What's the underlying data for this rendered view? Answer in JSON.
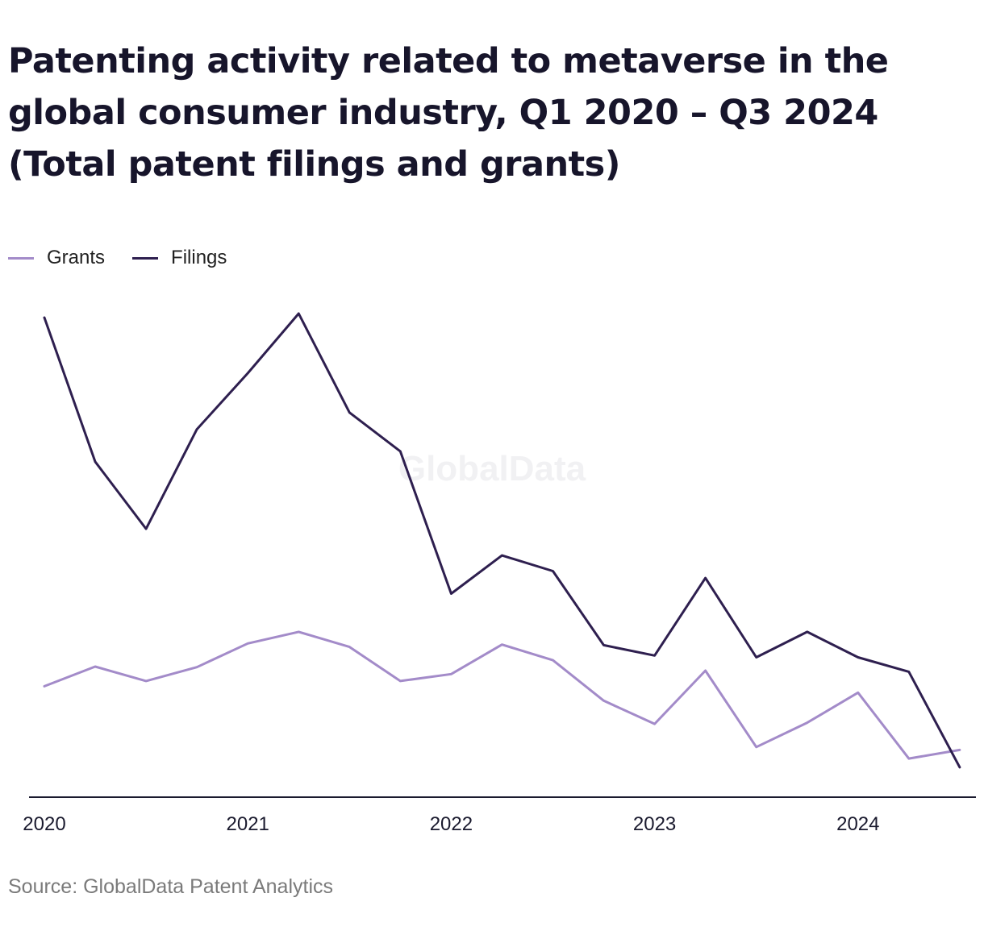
{
  "title": "Patenting activity related to metaverse in the global consumer industry, Q1 2020 – Q3 2024 (Total patent filings and grants)",
  "watermark": "GlobalData",
  "source": "Source: GlobalData Patent Analytics",
  "legend": {
    "position": "top-left"
  },
  "chart_data": {
    "type": "line",
    "title": "Patenting activity related to metaverse in the global consumer industry, Q1 2020 – Q3 2024 (Total patent filings and grants)",
    "xlabel": "",
    "ylabel": "",
    "x": [
      "Q1 2020",
      "Q2 2020",
      "Q3 2020",
      "Q4 2020",
      "Q1 2021",
      "Q2 2021",
      "Q3 2021",
      "Q4 2021",
      "Q1 2022",
      "Q2 2022",
      "Q3 2022",
      "Q4 2022",
      "Q1 2023",
      "Q2 2023",
      "Q3 2023",
      "Q4 2023",
      "Q1 2024",
      "Q2 2024",
      "Q3 2024"
    ],
    "x_tick_labels": [
      "2020",
      "2021",
      "2022",
      "2023",
      "2024"
    ],
    "y_axis_visible": false,
    "grid": false,
    "ylim": [
      0,
      100
    ],
    "series": [
      {
        "name": "Grants",
        "color": "#a38bc9",
        "values": [
          35.6,
          39.0,
          36.5,
          38.9,
          43.0,
          45.0,
          42.4,
          36.5,
          37.7,
          42.8,
          40.1,
          33.1,
          29.1,
          38.3,
          25.1,
          29.3,
          34.5,
          23.1,
          24.6
        ]
      },
      {
        "name": "Filings",
        "color": "#2e1f4f",
        "values": [
          99.3,
          74.4,
          62.8,
          80.0,
          89.7,
          100.0,
          82.9,
          76.2,
          51.6,
          58.2,
          55.5,
          42.7,
          40.9,
          54.3,
          40.6,
          45.0,
          40.6,
          38.1,
          21.6
        ]
      }
    ]
  }
}
